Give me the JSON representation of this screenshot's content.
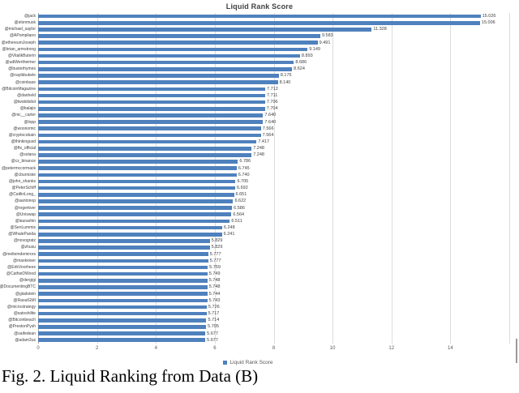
{
  "caption": "Fig. 2. Liquid Ranking from Data (B)",
  "chart_data": {
    "type": "bar",
    "orientation": "horizontal",
    "title": "Liquid Rank Score",
    "legend": [
      "Liquid Rank Score"
    ],
    "legend_position": "bottom-center",
    "grid": true,
    "bar_color": "#4f81bd",
    "gridline_color": "#dcdcdc",
    "label_color": "#404040",
    "xlim": [
      0,
      16
    ],
    "xticks": [
      0,
      2,
      4,
      6,
      8,
      10,
      12,
      14
    ],
    "value_format_decimals": 3,
    "categories": [
      "@jack",
      "@elonmusk",
      "@michael_saylor",
      "@APompliano",
      "@ethereumJoseph",
      "@brian_armstrong",
      "@VitalikButerin",
      "@udiWertheimer",
      "@busterhymes",
      "@nayibbukele",
      "@coinbase",
      "@BitcoinMagazine",
      "@danheld",
      "@twobitidiot",
      "@balajis",
      "@nic__carter",
      "@lopp",
      "@woonomic",
      "@cryptocobain",
      "@thinkingusd",
      "@ftx_official",
      "@solana",
      "@cz_binance",
      "@petermccormack",
      "@cburniske",
      "@john_shanks",
      "@PeterSchiff",
      "@CaitlinLong_",
      "@aantonop",
      "@rogerkver",
      "@Uniswap",
      "@laurashin",
      "@SenLummis",
      "@WhalePanda",
      "@novogratz",
      "@zhusu",
      "@meltemdemirors",
      "@maxkeiser",
      "@ErikVoorhees",
      "@CathieDWood",
      "@dergigi",
      "@DocumentingBTC",
      "@gladstein",
      "@RaoulGMI",
      "@microstrategy",
      "@satoshilite",
      "@Bitcoinbeach",
      "@PrestonPysh",
      "@saifedean",
      "@adam3us"
    ],
    "values": [
      15.026,
      15.006,
      11.328,
      9.583,
      9.491,
      9.149,
      8.893,
      8.686,
      8.624,
      8.175,
      8.14,
      7.712,
      7.711,
      7.706,
      7.704,
      7.64,
      7.64,
      7.566,
      7.564,
      7.417,
      7.248,
      7.248,
      6.786,
      6.745,
      6.74,
      6.705,
      6.692,
      6.651,
      6.622,
      6.586,
      6.564,
      6.511,
      6.248,
      6.241,
      5.829,
      5.829,
      5.777,
      5.777,
      5.759,
      5.749,
      5.748,
      5.748,
      5.744,
      5.743,
      5.726,
      5.717,
      5.714,
      5.705,
      5.677,
      5.677
    ]
  }
}
